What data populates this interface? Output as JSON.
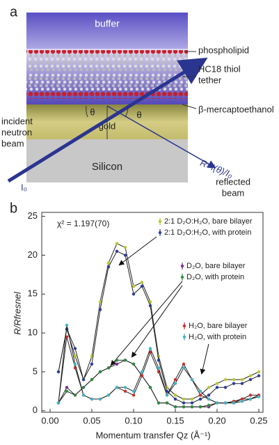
{
  "panel_a": {
    "label": "a",
    "buffer": "buffer",
    "phospholipid": "phospholipid",
    "thiol": "HC18 thiol",
    "tether": "tether",
    "mercapto": "β-mercaptoethanol",
    "incident": [
      "incident",
      "neutron",
      "beam"
    ],
    "gold": "gold",
    "theta_left": "θ",
    "theta_right": "θ",
    "silicon": "Silicon",
    "i0": "I₀",
    "ratio": "R=I(θ)/I₀",
    "reflected": [
      "reflected",
      "beam"
    ]
  },
  "chart_data": {
    "type": "scatter",
    "panel_label": "b",
    "annotation": "χ² = 1.197(70)",
    "x_label": "Momentum transfer Qz (Å⁻¹)",
    "y_label": "R/Rfresnel",
    "x": [
      0.01,
      0.02,
      0.03,
      0.04,
      0.05,
      0.06,
      0.07,
      0.08,
      0.09,
      0.1,
      0.11,
      0.12,
      0.13,
      0.14,
      0.15,
      0.16,
      0.17,
      0.18,
      0.19,
      0.2,
      0.21,
      0.22,
      0.23,
      0.24,
      0.25
    ],
    "series": [
      {
        "name": "2:1 D₂O:H₂O, bare bilayer",
        "color": "#b8c82a",
        "values": [
          5,
          10.5,
          7,
          4,
          7,
          14,
          19,
          21.5,
          21,
          16,
          16.5,
          14,
          7,
          3,
          2,
          1.5,
          1.5,
          2,
          3,
          3.5,
          4,
          4,
          4,
          4.5,
          5
        ]
      },
      {
        "name": "2:1 D₂O:H₂O, with protein",
        "color": "#2c3e9a",
        "values": [
          5,
          10.5,
          8,
          4,
          6,
          13,
          18.5,
          20.5,
          20,
          15,
          16,
          13.5,
          6.5,
          2.5,
          1.5,
          1,
          1,
          1.5,
          2,
          3,
          3,
          3.5,
          3.5,
          4,
          4.5
        ]
      },
      {
        "name": "D₂O, bare bilayer",
        "color": "#7b2e8f",
        "values": [
          1,
          3,
          2,
          3,
          4,
          5,
          5.5,
          6,
          6.5,
          6,
          4.5,
          3,
          1,
          1,
          0.5,
          0.5,
          0.5,
          0.5,
          0.5,
          1,
          1,
          1,
          1.5,
          1.5,
          2
        ]
      },
      {
        "name": "D₂O, with protein",
        "color": "#2e8b3f",
        "values": [
          1,
          2.5,
          2,
          3,
          4,
          5,
          5.5,
          6.5,
          6.5,
          6,
          4.5,
          3,
          1,
          1,
          0.5,
          0.5,
          0.5,
          0.5,
          0.7,
          1,
          1,
          1.2,
          1.5,
          1.5,
          2
        ]
      },
      {
        "name": "H₂O, bare bilayer",
        "color": "#d42a2a",
        "values": [
          1,
          9.5,
          5.5,
          2,
          1.5,
          1.5,
          2,
          3,
          2.5,
          2,
          4.5,
          7.5,
          5,
          2,
          4,
          6,
          4,
          2,
          1.5,
          1,
          1,
          1.2,
          1.5,
          2,
          2
        ]
      },
      {
        "name": "H₂O, with protein",
        "color": "#3fb7c4",
        "values": [
          1,
          11,
          6,
          2,
          1.5,
          1.5,
          2,
          3,
          3,
          2.5,
          5,
          8,
          5.5,
          2,
          3.5,
          5.5,
          4,
          2.5,
          1.5,
          1,
          1,
          1,
          1.2,
          1.5,
          1.8
        ]
      }
    ],
    "xlim": [
      -0.01,
      0.255
    ],
    "ylim": [
      -0.2,
      25.5
    ],
    "xticks": [
      {
        "value": 0,
        "label": "0.00"
      },
      {
        "value": 0.05,
        "label": "0.05"
      },
      {
        "value": 0.1,
        "label": "0.10"
      },
      {
        "value": 0.15,
        "label": "0.15"
      },
      {
        "value": 0.2,
        "label": "0.20"
      },
      {
        "value": 0.25,
        "label": "0.25"
      }
    ],
    "yticks": [
      0,
      5,
      10,
      15,
      20,
      25
    ]
  }
}
